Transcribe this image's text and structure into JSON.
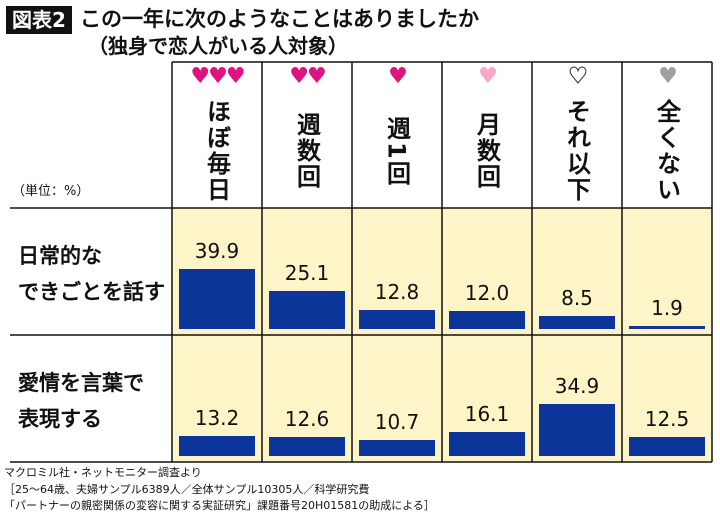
{
  "badge": "図表2",
  "title": "この一年に次のようなことはありましたか",
  "subtitle": "（独身で恋人がいる人対象）",
  "chart_data": {
    "type": "bar",
    "unit_label": "（単位：%）",
    "categories": [
      "ほぼ毎日",
      "週数回",
      "週1回",
      "月数回",
      "それ以下",
      "全くない"
    ],
    "hearts": [
      {
        "count": 3,
        "color": "#e0127f"
      },
      {
        "count": 2,
        "color": "#e0127f"
      },
      {
        "count": 1,
        "color": "#e0127f"
      },
      {
        "count": 1,
        "color": "#f5a6c9"
      },
      {
        "count": 1,
        "color": "#ffffff"
      },
      {
        "count": 1,
        "color": "#a0a0a0"
      }
    ],
    "series": [
      {
        "name": "日常的なできごとを話す",
        "label_lines": [
          "日常的な",
          "できごとを話す"
        ],
        "values": [
          39.9,
          25.1,
          12.8,
          12.0,
          8.5,
          1.9
        ]
      },
      {
        "name": "愛情を言葉で表現する",
        "label_lines": [
          "愛情を言葉で",
          "表現する"
        ],
        "values": [
          13.2,
          12.6,
          10.7,
          16.1,
          34.9,
          12.5
        ]
      }
    ],
    "bar_color": "#0c3599",
    "cell_color": "#fdf5c8"
  },
  "footer": [
    "マクロミル社・ネットモニター調査より",
    "［25〜64歳、夫婦サンプル6389人／全体サンプル10305人／科学研究費",
    "「パートナーの親密関係の変容に関する実証研究」課題番号20H01581の助成による］"
  ]
}
